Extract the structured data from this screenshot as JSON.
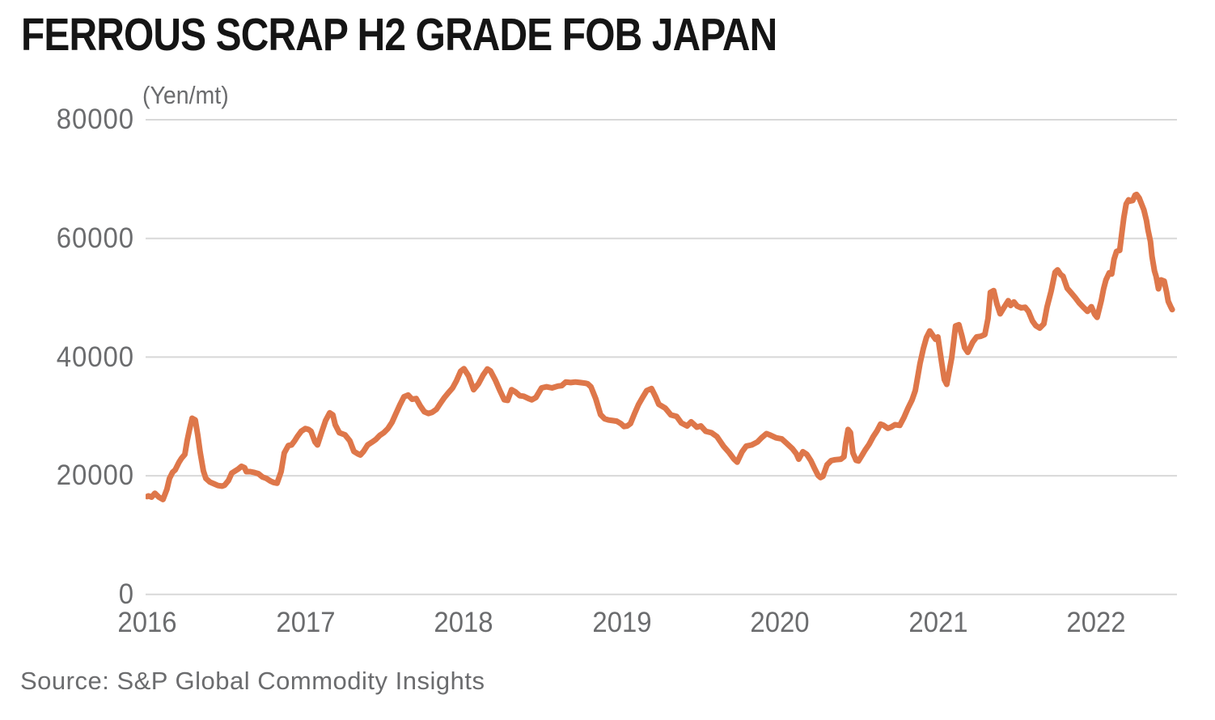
{
  "title": "FERROUS SCRAP H2 GRADE FOB JAPAN",
  "source": "Source: S&P Global Commodity Insights",
  "colors": {
    "line": "#DE774A",
    "grid": "#D8D8D8",
    "text_gray": "#6B6C6E",
    "title_text": "#151515",
    "background": "#FFFFFF"
  },
  "chart_data": {
    "type": "line",
    "title": "FERROUS SCRAP H2 GRADE FOB JAPAN",
    "unit_label": "(Yen/mt)",
    "series_name": "Ferrous scrap H2 grade FOB Japan price",
    "xlabel": "",
    "ylabel": "Yen/mt",
    "grid": "horizontal",
    "legend": "none",
    "line_color": "#DE774A",
    "xlim": [
      2015.991,
      2022.513
    ],
    "ylim": [
      0,
      80000
    ],
    "y_ticks": [
      80000,
      60000,
      40000,
      20000,
      0
    ],
    "y_tick_labels": [
      "80000",
      "60000",
      "40000",
      "20000",
      "0"
    ],
    "x_ticks": [
      2016,
      2017,
      2018,
      2019,
      2020,
      2021,
      2022
    ],
    "x_tick_labels": [
      "2016",
      "2017",
      "2018",
      "2019",
      "2020",
      "2021",
      "2022"
    ],
    "points": [
      [
        2016.0,
        16500
      ],
      [
        2016.009,
        16600
      ],
      [
        2016.029,
        16400
      ],
      [
        2016.05,
        17050
      ],
      [
        2016.075,
        16400
      ],
      [
        2016.101,
        16000
      ],
      [
        2016.126,
        17750
      ],
      [
        2016.142,
        19550
      ],
      [
        2016.162,
        20600
      ],
      [
        2016.178,
        21000
      ],
      [
        2016.203,
        22300
      ],
      [
        2016.218,
        22950
      ],
      [
        2016.239,
        23600
      ],
      [
        2016.254,
        25950
      ],
      [
        2016.27,
        27950
      ],
      [
        2016.285,
        29700
      ],
      [
        2016.305,
        29400
      ],
      [
        2016.321,
        26850
      ],
      [
        2016.336,
        24000
      ],
      [
        2016.356,
        20850
      ],
      [
        2016.372,
        19550
      ],
      [
        2016.397,
        18950
      ],
      [
        2016.423,
        18650
      ],
      [
        2016.449,
        18350
      ],
      [
        2016.474,
        18250
      ],
      [
        2016.49,
        18400
      ],
      [
        2016.515,
        19200
      ],
      [
        2016.536,
        20450
      ],
      [
        2016.577,
        21150
      ],
      [
        2016.597,
        21600
      ],
      [
        2016.617,
        21350
      ],
      [
        2016.628,
        20700
      ],
      [
        2016.653,
        20700
      ],
      [
        2016.679,
        20550
      ],
      [
        2016.704,
        20350
      ],
      [
        2016.73,
        19800
      ],
      [
        2016.755,
        19550
      ],
      [
        2016.781,
        19100
      ],
      [
        2016.802,
        18850
      ],
      [
        2016.822,
        18750
      ],
      [
        2016.848,
        20700
      ],
      [
        2016.868,
        23850
      ],
      [
        2016.894,
        25100
      ],
      [
        2016.914,
        25200
      ],
      [
        2016.934,
        25900
      ],
      [
        2016.95,
        26600
      ],
      [
        2016.975,
        27500
      ],
      [
        2017.001,
        27950
      ],
      [
        2017.021,
        27800
      ],
      [
        2017.037,
        27500
      ],
      [
        2017.062,
        25700
      ],
      [
        2017.078,
        25200
      ],
      [
        2017.103,
        27250
      ],
      [
        2017.129,
        29300
      ],
      [
        2017.155,
        30600
      ],
      [
        2017.175,
        30250
      ],
      [
        2017.19,
        28600
      ],
      [
        2017.216,
        27250
      ],
      [
        2017.252,
        26900
      ],
      [
        2017.282,
        25900
      ],
      [
        2017.308,
        24100
      ],
      [
        2017.333,
        23700
      ],
      [
        2017.349,
        23500
      ],
      [
        2017.369,
        24100
      ],
      [
        2017.395,
        25200
      ],
      [
        2017.421,
        25650
      ],
      [
        2017.446,
        26100
      ],
      [
        2017.472,
        26800
      ],
      [
        2017.497,
        27250
      ],
      [
        2017.523,
        27950
      ],
      [
        2017.549,
        29000
      ],
      [
        2017.574,
        30500
      ],
      [
        2017.6,
        32000
      ],
      [
        2017.625,
        33300
      ],
      [
        2017.651,
        33600
      ],
      [
        2017.676,
        32900
      ],
      [
        2017.702,
        33000
      ],
      [
        2017.727,
        31800
      ],
      [
        2017.753,
        30800
      ],
      [
        2017.779,
        30500
      ],
      [
        2017.804,
        30700
      ],
      [
        2017.83,
        31200
      ],
      [
        2017.855,
        32200
      ],
      [
        2017.881,
        33200
      ],
      [
        2017.906,
        34000
      ],
      [
        2017.932,
        34800
      ],
      [
        2017.957,
        36000
      ],
      [
        2017.983,
        37600
      ],
      [
        2018.004,
        38050
      ],
      [
        2018.034,
        36800
      ],
      [
        2018.065,
        34500
      ],
      [
        2018.096,
        35500
      ],
      [
        2018.126,
        37000
      ],
      [
        2018.152,
        38000
      ],
      [
        2018.172,
        37650
      ],
      [
        2018.203,
        36100
      ],
      [
        2018.229,
        34500
      ],
      [
        2018.259,
        32800
      ],
      [
        2018.28,
        32700
      ],
      [
        2018.305,
        34500
      ],
      [
        2018.331,
        34100
      ],
      [
        2018.357,
        33500
      ],
      [
        2018.382,
        33400
      ],
      [
        2018.413,
        33000
      ],
      [
        2018.433,
        32800
      ],
      [
        2018.459,
        33200
      ],
      [
        2018.495,
        34800
      ],
      [
        2018.525,
        35000
      ],
      [
        2018.561,
        34800
      ],
      [
        2018.597,
        35100
      ],
      [
        2018.623,
        35200
      ],
      [
        2018.648,
        35800
      ],
      [
        2018.679,
        35700
      ],
      [
        2018.709,
        35800
      ],
      [
        2018.74,
        35700
      ],
      [
        2018.771,
        35600
      ],
      [
        2018.786,
        35500
      ],
      [
        2018.807,
        35000
      ],
      [
        2018.837,
        33000
      ],
      [
        2018.868,
        30300
      ],
      [
        2018.894,
        29600
      ],
      [
        2018.919,
        29400
      ],
      [
        2018.945,
        29300
      ],
      [
        2018.97,
        29200
      ],
      [
        2018.996,
        28800
      ],
      [
        2019.016,
        28300
      ],
      [
        2019.037,
        28400
      ],
      [
        2019.057,
        28800
      ],
      [
        2019.083,
        30500
      ],
      [
        2019.108,
        32000
      ],
      [
        2019.134,
        33200
      ],
      [
        2019.16,
        34350
      ],
      [
        2019.19,
        34700
      ],
      [
        2019.216,
        33300
      ],
      [
        2019.236,
        32050
      ],
      [
        2019.277,
        31400
      ],
      [
        2019.313,
        30250
      ],
      [
        2019.349,
        30000
      ],
      [
        2019.379,
        28900
      ],
      [
        2019.415,
        28400
      ],
      [
        2019.441,
        29100
      ],
      [
        2019.477,
        28200
      ],
      [
        2019.502,
        28400
      ],
      [
        2019.533,
        27500
      ],
      [
        2019.569,
        27250
      ],
      [
        2019.604,
        26600
      ],
      [
        2019.645,
        25000
      ],
      [
        2019.681,
        23900
      ],
      [
        2019.712,
        22800
      ],
      [
        2019.732,
        22300
      ],
      [
        2019.763,
        24050
      ],
      [
        2019.789,
        25000
      ],
      [
        2019.824,
        25200
      ],
      [
        2019.86,
        25700
      ],
      [
        2019.886,
        26400
      ],
      [
        2019.917,
        27100
      ],
      [
        2019.942,
        26850
      ],
      [
        2019.978,
        26400
      ],
      [
        2020.014,
        26200
      ],
      [
        2020.044,
        25500
      ],
      [
        2020.08,
        24600
      ],
      [
        2020.106,
        23700
      ],
      [
        2020.121,
        22800
      ],
      [
        2020.147,
        24050
      ],
      [
        2020.172,
        23600
      ],
      [
        2020.198,
        22550
      ],
      [
        2020.223,
        21150
      ],
      [
        2020.244,
        20050
      ],
      [
        2020.259,
        19700
      ],
      [
        2020.274,
        19900
      ],
      [
        2020.3,
        21850
      ],
      [
        2020.326,
        22550
      ],
      [
        2020.351,
        22700
      ],
      [
        2020.387,
        22800
      ],
      [
        2020.407,
        23200
      ],
      [
        2020.418,
        25500
      ],
      [
        2020.433,
        27800
      ],
      [
        2020.448,
        27300
      ],
      [
        2020.464,
        23850
      ],
      [
        2020.484,
        22600
      ],
      [
        2020.499,
        22500
      ],
      [
        2020.52,
        23400
      ],
      [
        2020.54,
        24300
      ],
      [
        2020.566,
        25300
      ],
      [
        2020.592,
        26600
      ],
      [
        2020.617,
        27600
      ],
      [
        2020.638,
        28700
      ],
      [
        2020.658,
        28500
      ],
      [
        2020.684,
        28000
      ],
      [
        2020.704,
        28200
      ],
      [
        2020.73,
        28600
      ],
      [
        2020.76,
        28500
      ],
      [
        2020.786,
        29800
      ],
      [
        2020.812,
        31400
      ],
      [
        2020.837,
        32750
      ],
      [
        2020.858,
        34350
      ],
      [
        2020.873,
        36600
      ],
      [
        2020.888,
        38900
      ],
      [
        2020.909,
        41400
      ],
      [
        2020.929,
        43300
      ],
      [
        2020.95,
        44400
      ],
      [
        2020.97,
        43600
      ],
      [
        2020.986,
        43000
      ],
      [
        2021.001,
        43400
      ],
      [
        2021.026,
        38900
      ],
      [
        2021.042,
        36200
      ],
      [
        2021.057,
        35400
      ],
      [
        2021.088,
        39800
      ],
      [
        2021.113,
        45250
      ],
      [
        2021.134,
        45450
      ],
      [
        2021.154,
        43500
      ],
      [
        2021.17,
        41600
      ],
      [
        2021.19,
        40800
      ],
      [
        2021.221,
        42500
      ],
      [
        2021.246,
        43400
      ],
      [
        2021.272,
        43500
      ],
      [
        2021.298,
        43800
      ],
      [
        2021.318,
        46500
      ],
      [
        2021.333,
        50900
      ],
      [
        2021.354,
        51200
      ],
      [
        2021.374,
        49000
      ],
      [
        2021.395,
        47300
      ],
      [
        2021.42,
        48400
      ],
      [
        2021.446,
        49500
      ],
      [
        2021.461,
        48700
      ],
      [
        2021.482,
        49300
      ],
      [
        2021.502,
        48600
      ],
      [
        2021.528,
        48300
      ],
      [
        2021.553,
        48400
      ],
      [
        2021.574,
        47700
      ],
      [
        2021.599,
        46100
      ],
      [
        2021.62,
        45300
      ],
      [
        2021.645,
        44900
      ],
      [
        2021.671,
        45600
      ],
      [
        2021.691,
        48400
      ],
      [
        2021.717,
        51100
      ],
      [
        2021.742,
        54300
      ],
      [
        2021.758,
        54700
      ],
      [
        2021.778,
        53900
      ],
      [
        2021.793,
        53600
      ],
      [
        2021.819,
        51600
      ],
      [
        2021.845,
        50800
      ],
      [
        2021.87,
        50000
      ],
      [
        2021.896,
        49100
      ],
      [
        2021.921,
        48400
      ],
      [
        2021.947,
        47700
      ],
      [
        2021.972,
        48500
      ],
      [
        2021.993,
        47200
      ],
      [
        2022.008,
        46700
      ],
      [
        2022.034,
        49500
      ],
      [
        2022.049,
        51500
      ],
      [
        2022.064,
        53000
      ],
      [
        2022.085,
        54200
      ],
      [
        2022.1,
        54000
      ],
      [
        2022.115,
        56500
      ],
      [
        2022.131,
        57800
      ],
      [
        2022.151,
        58000
      ],
      [
        2022.167,
        61500
      ],
      [
        2022.177,
        63500
      ],
      [
        2022.192,
        65800
      ],
      [
        2022.207,
        66500
      ],
      [
        2022.218,
        66300
      ],
      [
        2022.233,
        66400
      ],
      [
        2022.248,
        67300
      ],
      [
        2022.258,
        67400
      ],
      [
        2022.274,
        66800
      ],
      [
        2022.289,
        65800
      ],
      [
        2022.304,
        64800
      ],
      [
        2022.32,
        63000
      ],
      [
        2022.33,
        61400
      ],
      [
        2022.345,
        59500
      ],
      [
        2022.355,
        57000
      ],
      [
        2022.371,
        54500
      ],
      [
        2022.381,
        53600
      ],
      [
        2022.396,
        51500
      ],
      [
        2022.412,
        53000
      ],
      [
        2022.432,
        52800
      ],
      [
        2022.447,
        51000
      ],
      [
        2022.458,
        49400
      ],
      [
        2022.473,
        48500
      ],
      [
        2022.483,
        48000
      ]
    ]
  }
}
